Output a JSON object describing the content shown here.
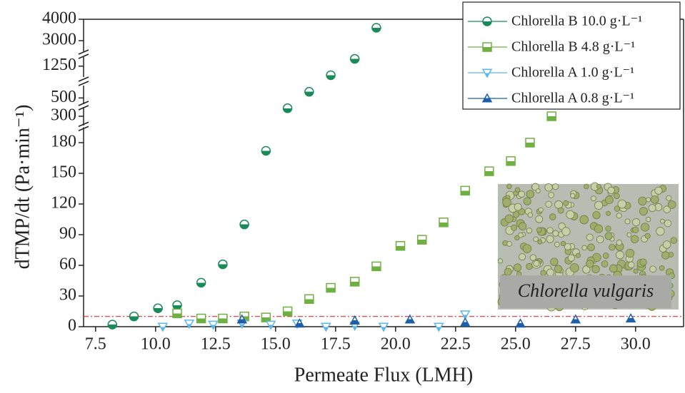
{
  "chart_data": {
    "type": "scatter",
    "x_label": "Permeate Flux (LMH)",
    "y_label": "dTMP/dt (Pa·min⁻¹)",
    "xlim": [
      7,
      32
    ],
    "xticks": [
      {
        "value": 7.5,
        "label": "7.5"
      },
      {
        "value": 10,
        "label": "10.0"
      },
      {
        "value": 12.5,
        "label": "12.5"
      },
      {
        "value": 15,
        "label": "15.0"
      },
      {
        "value": 17.5,
        "label": "17.5"
      },
      {
        "value": 20,
        "label": "20.0"
      },
      {
        "value": 22.5,
        "label": "22.5"
      },
      {
        "value": 25,
        "label": "25.0"
      },
      {
        "value": 27.5,
        "label": "27.5"
      },
      {
        "value": 30,
        "label": "30.0"
      }
    ],
    "y_segments": [
      {
        "ylim": [
          0,
          195
        ],
        "yticks": [
          0,
          30,
          60,
          90,
          120,
          150,
          180
        ]
      },
      {
        "ylim": [
          280,
          320
        ],
        "yticks": [
          300
        ]
      },
      {
        "ylim": [
          400,
          700
        ],
        "yticks": [
          500
        ]
      },
      {
        "ylim": [
          950,
          1500
        ],
        "yticks": [
          1250
        ]
      },
      {
        "ylim": [
          2500,
          4000
        ],
        "yticks": [
          3000,
          4000
        ]
      }
    ],
    "legend": "upper right",
    "reference_line": {
      "value": 10,
      "color": "#e03030"
    },
    "annotations": [
      "Chlorella vulgaris"
    ],
    "series": [
      {
        "name": "Chlorella B 10.0 g·L⁻¹",
        "marker": "circle",
        "color": "#1a8a5a",
        "x": [
          8.2,
          9.1,
          10.1,
          10.9,
          11.9,
          12.8,
          13.7,
          14.6,
          15.5,
          16.4,
          17.3,
          18.3,
          19.2
        ],
        "values": [
          2,
          10,
          18,
          21,
          43,
          61,
          100,
          172,
          333,
          600,
          1000,
          1450,
          3600
        ]
      },
      {
        "name": "Chlorella B 4.8 g·L⁻¹",
        "marker": "square",
        "color": "#6fb043",
        "x": [
          10.9,
          11.9,
          12.8,
          13.7,
          14.6,
          15.5,
          16.4,
          17.3,
          18.3,
          19.2,
          20.2,
          21.1,
          22.0,
          22.9,
          23.9,
          24.8,
          25.6,
          26.5
        ],
        "values": [
          13,
          8,
          8,
          10,
          9,
          15,
          27,
          38,
          44,
          59,
          79,
          85,
          102,
          133,
          152,
          162,
          180,
          300
        ]
      },
      {
        "name": "Chlorella A 1.0 g·L⁻¹",
        "marker": "triangle-down",
        "color": "#5bb8e8",
        "x": [
          10.3,
          11.4,
          12.4,
          13.6,
          14.8,
          15.9,
          17.1,
          18.3,
          19.5,
          21.8,
          22.9
        ],
        "values": [
          0,
          3,
          2,
          3,
          2,
          3,
          0,
          1,
          0,
          0,
          12
        ]
      },
      {
        "name": "Chlorella A 0.8 g·L⁻¹",
        "marker": "triangle-up",
        "color": "#1f5fa8",
        "x": [
          13.6,
          16.0,
          18.3,
          20.6,
          22.9,
          25.2,
          27.5,
          29.8
        ],
        "values": [
          7,
          3,
          6,
          7,
          4,
          3,
          7,
          8
        ]
      }
    ]
  }
}
